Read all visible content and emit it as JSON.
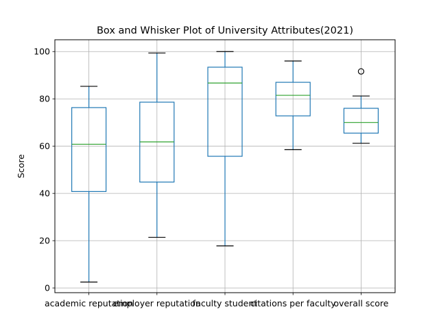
{
  "chart_data": {
    "type": "box",
    "title": "Box and Whisker Plot of University Attributes(2021)",
    "xlabel": "",
    "ylabel": "Score",
    "ylim": [
      -2,
      105
    ],
    "yticks": [
      0,
      20,
      40,
      60,
      80,
      100
    ],
    "grid": true,
    "categories": [
      "academic reputation",
      "employer reputation",
      "faculty student",
      "citations per faculty",
      "overall score"
    ],
    "boxes": [
      {
        "category": "academic reputation",
        "whisker_low": 2.5,
        "q1": 40.8,
        "median": 60.8,
        "q3": 76.3,
        "whisker_high": 85.3,
        "outliers": []
      },
      {
        "category": "employer reputation",
        "whisker_low": 21.4,
        "q1": 44.8,
        "median": 61.8,
        "q3": 78.6,
        "whisker_high": 99.4,
        "outliers": []
      },
      {
        "category": "faculty student",
        "whisker_low": 17.8,
        "q1": 55.7,
        "median": 86.7,
        "q3": 93.4,
        "whisker_high": 100,
        "outliers": []
      },
      {
        "category": "citations per faculty",
        "whisker_low": 58.5,
        "q1": 72.8,
        "median": 81.5,
        "q3": 87,
        "whisker_high": 96,
        "outliers": []
      },
      {
        "category": "overall score",
        "whisker_low": 61.2,
        "q1": 65.5,
        "median": 70,
        "q3": 76,
        "whisker_high": 81.2,
        "outliers": [
          91.6
        ]
      }
    ],
    "colors": {
      "box": "#1f77b4",
      "median": "#2ca02c",
      "whisker": "#1f77b4",
      "cap": "#000000",
      "outlier": "#000000",
      "grid": "#b0b0b0",
      "axis": "#000000"
    }
  }
}
